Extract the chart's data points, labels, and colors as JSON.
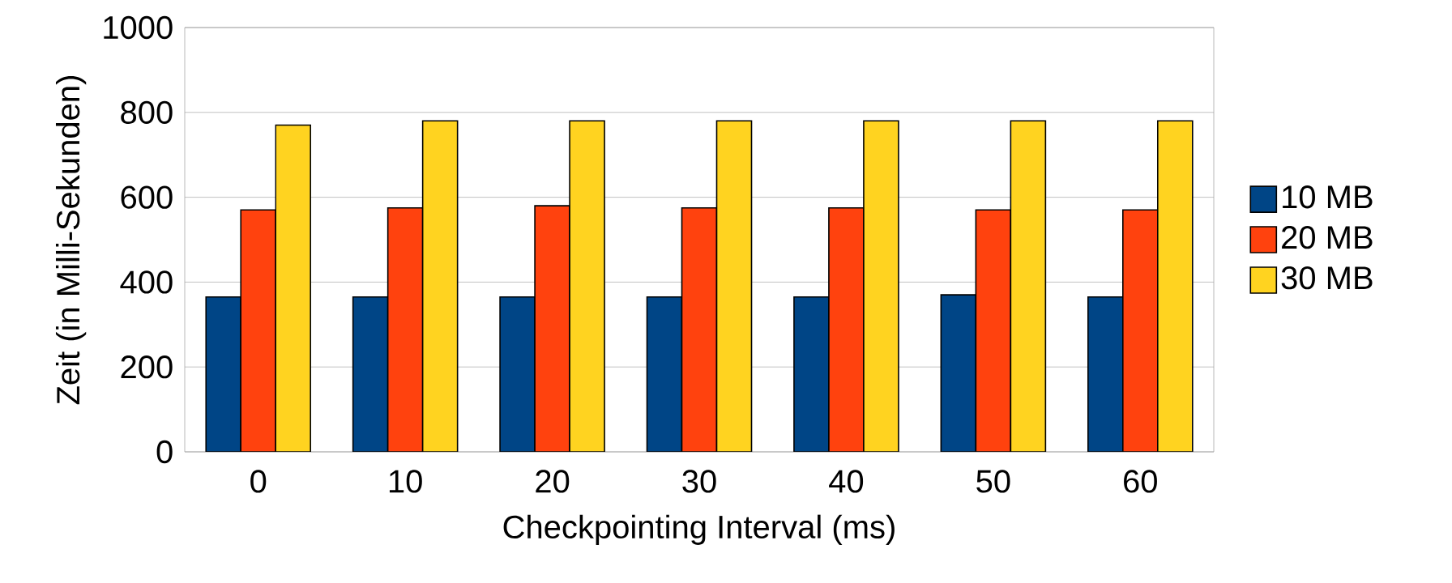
{
  "chart_data": {
    "type": "bar",
    "xlabel": "Checkpointing Interval (ms)",
    "ylabel": "Zeit (in Milli-Sekunden)",
    "categories": [
      "0",
      "10",
      "20",
      "30",
      "40",
      "50",
      "60"
    ],
    "series": [
      {
        "name": "10 MB",
        "color": "#004586",
        "values": [
          365,
          365,
          365,
          365,
          365,
          370,
          365
        ]
      },
      {
        "name": "20 MB",
        "color": "#ff420e",
        "values": [
          570,
          575,
          580,
          575,
          575,
          570,
          570
        ]
      },
      {
        "name": "30 MB",
        "color": "#ffd320",
        "values": [
          770,
          780,
          780,
          780,
          780,
          780,
          780
        ]
      }
    ],
    "ylim": [
      0,
      1000
    ],
    "yticks": [
      0,
      200,
      400,
      600,
      800,
      1000
    ],
    "grid": "y",
    "legend": "right"
  }
}
